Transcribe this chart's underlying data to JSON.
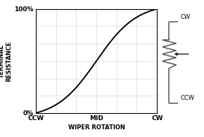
{
  "xlabel": "WIPER ROTATION",
  "ylabel": "WIPER TO CCW\nTERMINAL\nRESISTANCE",
  "xtick_labels": [
    "CCW",
    "MID",
    "CW"
  ],
  "xtick_positions": [
    0,
    0.5,
    1.0
  ],
  "ytick_labels": [
    "0%",
    "100%"
  ],
  "ytick_positions": [
    0.0,
    1.0
  ],
  "xlim": [
    0,
    1.0
  ],
  "ylim": [
    0,
    1.0
  ],
  "grid_x_positions": [
    0.0,
    0.167,
    0.333,
    0.5,
    0.667,
    0.833,
    1.0
  ],
  "grid_y_positions": [
    0.0,
    0.167,
    0.333,
    0.5,
    0.667,
    0.833,
    1.0
  ],
  "curve_color": "#000000",
  "grid_color": "#999999",
  "bg_color": "#ffffff",
  "box_color": "#000000",
  "resistor_color": "#555555",
  "label_fontsize": 6,
  "tick_fontsize": 6.5
}
